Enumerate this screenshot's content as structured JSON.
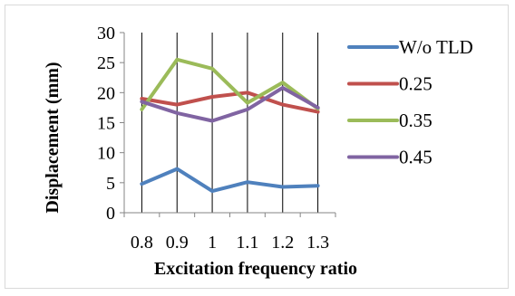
{
  "chart_data": {
    "type": "line",
    "title": "",
    "xlabel": "Excitation frequency ratio",
    "ylabel": "Displacement (mm)",
    "categories": [
      "0.8",
      "0.9",
      "1",
      "1.1",
      "1.2",
      "1.3"
    ],
    "ylim": [
      0,
      30
    ],
    "yticks": [
      0,
      5,
      10,
      15,
      20,
      25,
      30
    ],
    "grid": "vertical lines at categories",
    "legend_position": "right",
    "series": [
      {
        "name": "W/o TLD",
        "color": "#4f81bd",
        "values": [
          4.8,
          7.3,
          3.6,
          5.1,
          4.3,
          4.5
        ]
      },
      {
        "name": "0.25",
        "color": "#c0504d",
        "values": [
          19.0,
          18.0,
          19.3,
          20.0,
          18.0,
          16.8
        ]
      },
      {
        "name": "0.35",
        "color": "#9bbb59",
        "values": [
          17.2,
          25.5,
          24.0,
          18.3,
          21.7,
          17.3
        ]
      },
      {
        "name": "0.45",
        "color": "#8064a2",
        "values": [
          18.5,
          16.6,
          15.3,
          17.2,
          20.8,
          17.5
        ]
      }
    ]
  }
}
